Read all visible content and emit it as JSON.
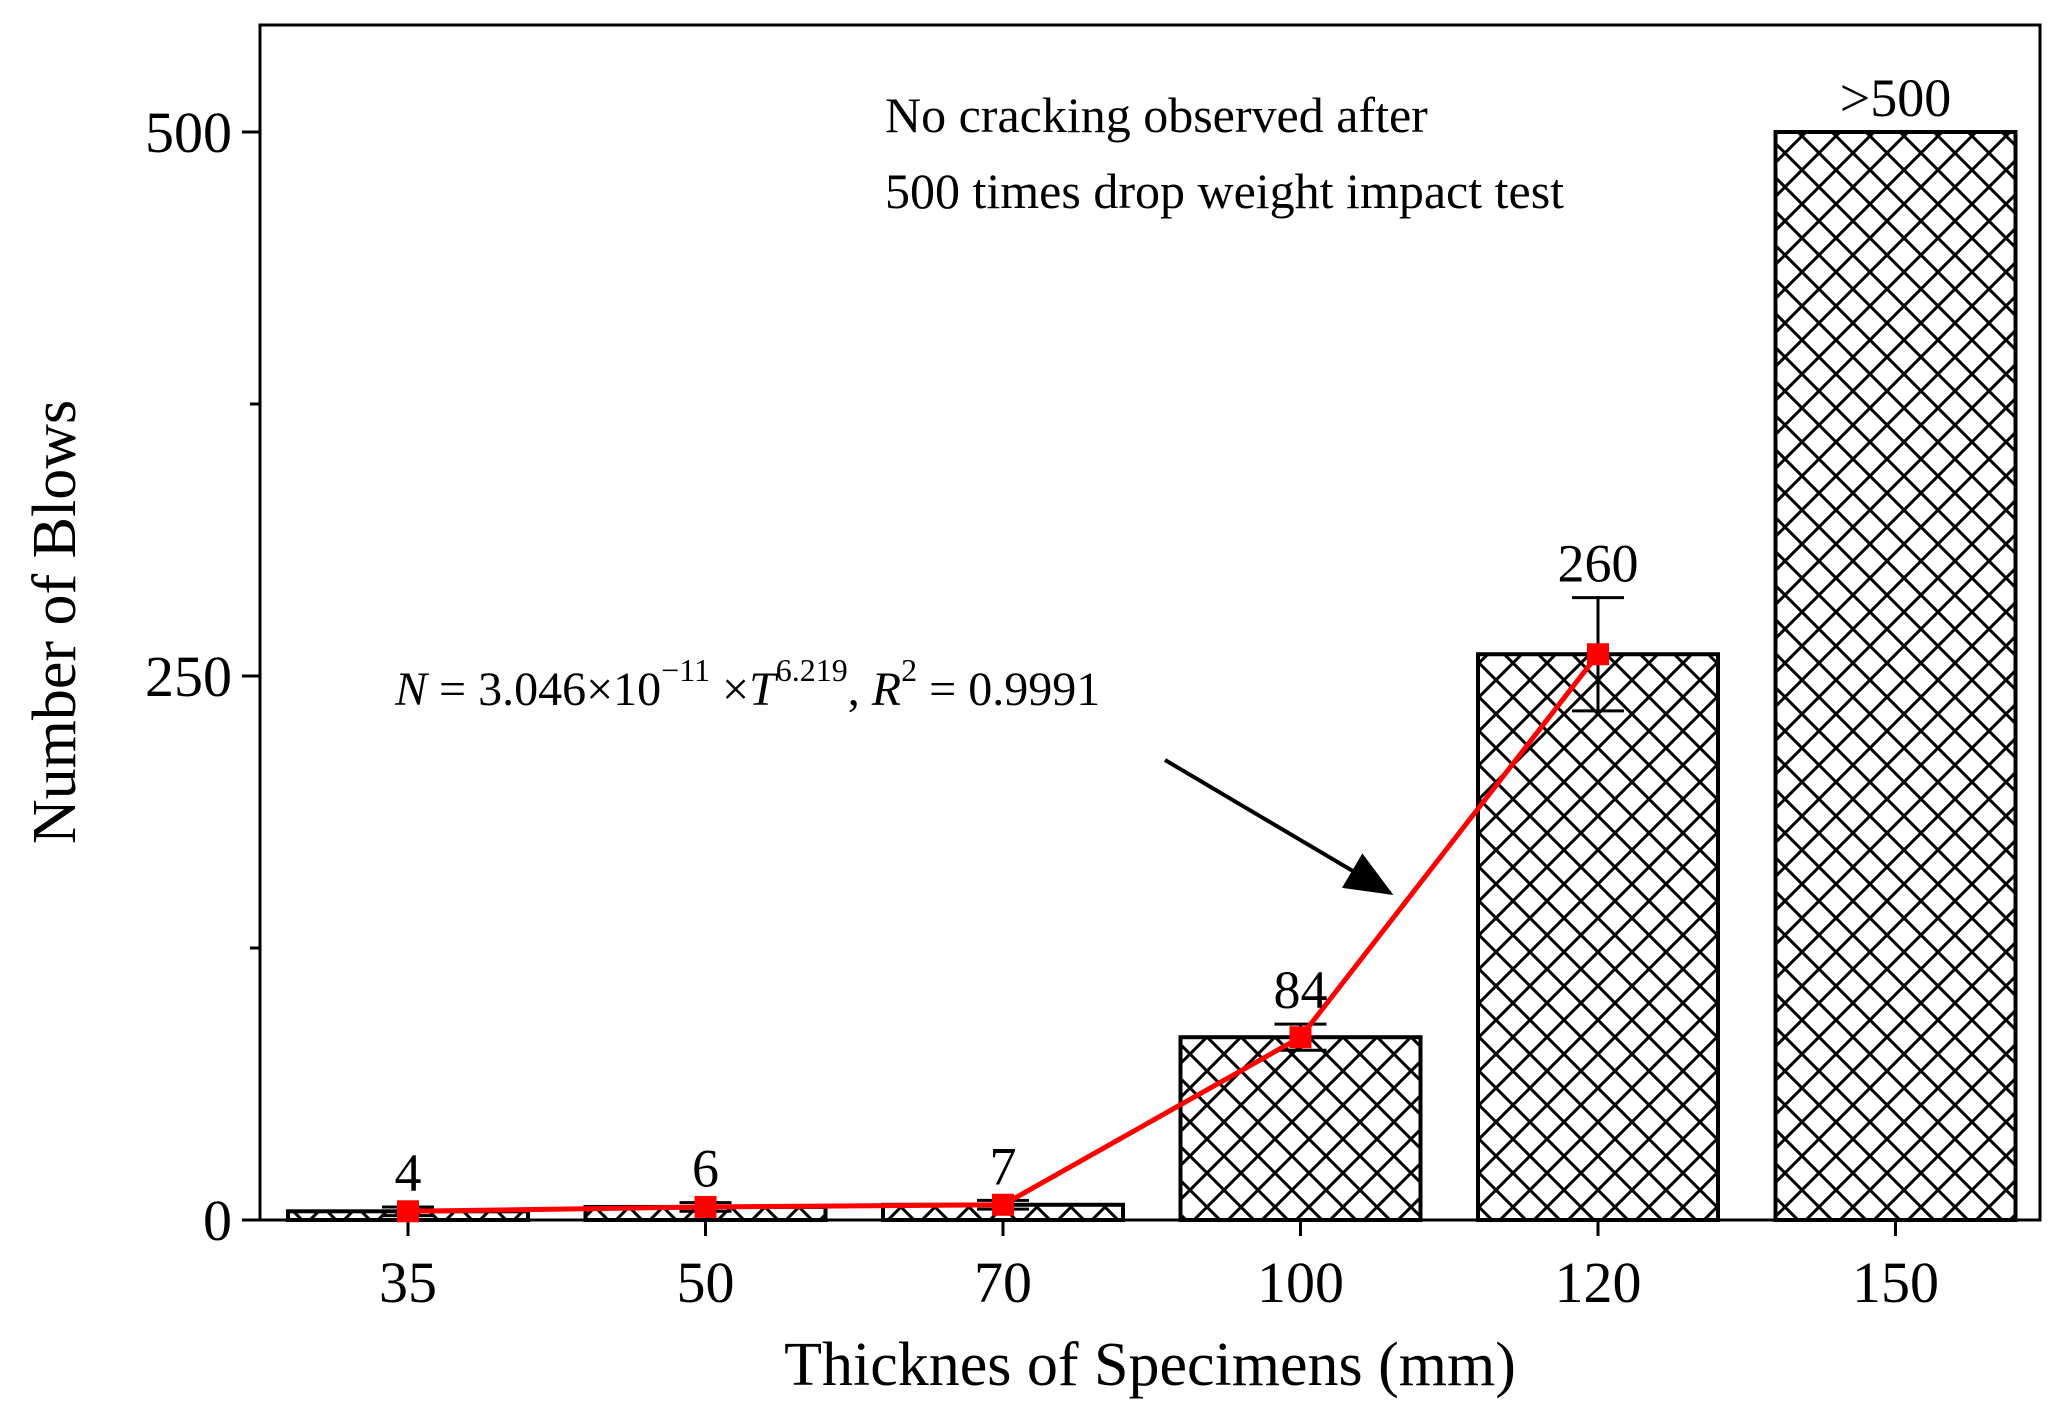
{
  "chart_data": {
    "type": "bar",
    "title": "",
    "xlabel": "Thicknes of Specimens (mm)",
    "ylabel": "Number of Blows",
    "categories": [
      "35",
      "50",
      "70",
      "100",
      "120",
      "150"
    ],
    "ylim": [
      0,
      550
    ],
    "yticks": [
      0,
      250,
      500
    ],
    "ytick_labels": [
      "0",
      "250",
      "500"
    ],
    "series": [
      {
        "name": "Number of Blows",
        "type": "bar",
        "pattern": "crosshatch",
        "values": [
          4,
          6,
          7,
          84,
          260,
          500
        ],
        "error": [
          2,
          2,
          2,
          6,
          26,
          0
        ],
        "data_labels": [
          "4",
          "6",
          "7",
          "84",
          "260",
          ">500"
        ]
      },
      {
        "name": "Fitted curve",
        "type": "line",
        "color": "#ff0000",
        "x": [
          "35",
          "50",
          "70",
          "100",
          "120"
        ],
        "values": [
          4,
          6,
          7,
          84,
          260
        ]
      }
    ],
    "annotations": {
      "note_line1": "No cracking observed after",
      "note_line2": "500 times drop weight impact test",
      "equation": {
        "n": "N",
        "eq1": " = 3.046×10",
        "exp1": "−11",
        "times": " ×",
        "t": "T",
        "exp2": "6.219",
        "comma": ", ",
        "r": "R",
        "exp3": "2",
        "eq2": " = 0.9991"
      }
    },
    "colors": {
      "fit_line": "#ff0000",
      "bar_stroke": "#000000",
      "bar_fill": "#ffffff"
    }
  }
}
